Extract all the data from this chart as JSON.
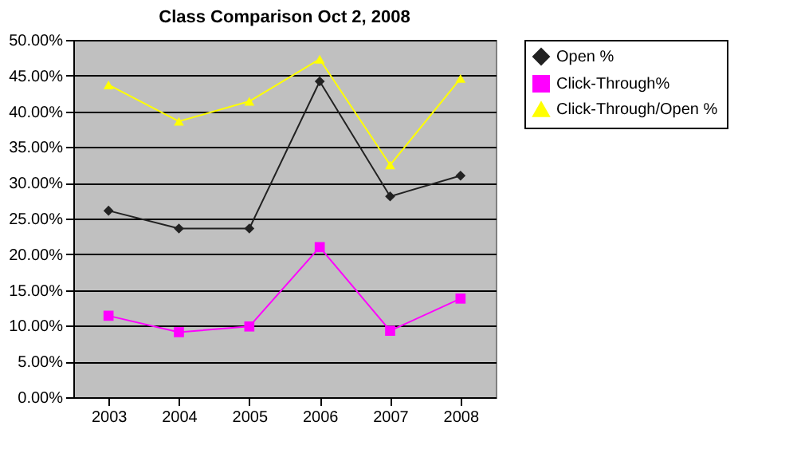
{
  "chart_data": {
    "type": "line",
    "title": "Class Comparison Oct 2, 2008",
    "categories": [
      "2003",
      "2004",
      "2005",
      "2006",
      "2007",
      "2008"
    ],
    "series": [
      {
        "name": "Open %",
        "color": "#222222",
        "marker": "diamond",
        "values": [
          26.1,
          23.6,
          23.6,
          44.2,
          28.1,
          31.0
        ]
      },
      {
        "name": "Click-Through%",
        "color": "#ff00ff",
        "marker": "square",
        "values": [
          11.4,
          9.1,
          9.9,
          21.0,
          9.3,
          13.8
        ]
      },
      {
        "name": "Click-Through/Open %",
        "color": "#ffff00",
        "marker": "triangle",
        "values": [
          43.7,
          38.6,
          41.4,
          47.3,
          32.5,
          44.6
        ]
      }
    ],
    "ylim": [
      0,
      50
    ],
    "yticks": [
      {
        "value": 0,
        "label": "0.00%"
      },
      {
        "value": 5,
        "label": "5.00%"
      },
      {
        "value": 10,
        "label": "10.00%"
      },
      {
        "value": 15,
        "label": "15.00%"
      },
      {
        "value": 20,
        "label": "20.00%"
      },
      {
        "value": 25,
        "label": "25.00%"
      },
      {
        "value": 30,
        "label": "30.00%"
      },
      {
        "value": 35,
        "label": "35.00%"
      },
      {
        "value": 40,
        "label": "40.00%"
      },
      {
        "value": 45,
        "label": "45.00%"
      },
      {
        "value": 50,
        "label": "50.00%"
      }
    ],
    "grid": "y",
    "legend": "right",
    "line_style": "solid"
  }
}
